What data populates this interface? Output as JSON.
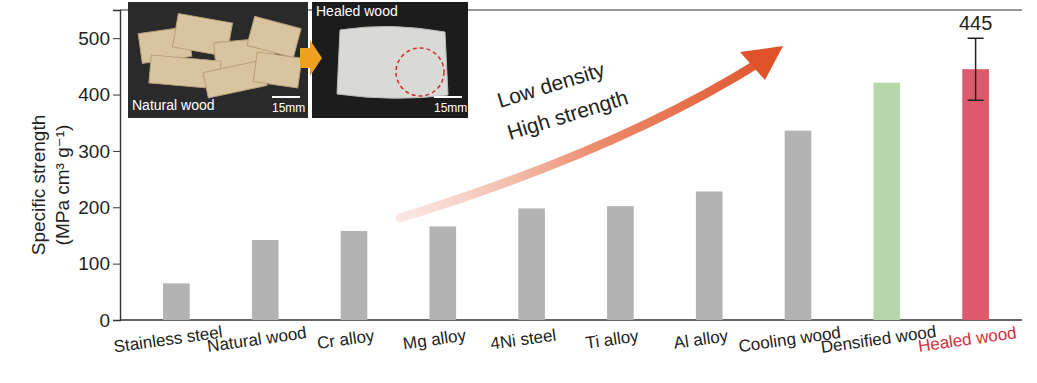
{
  "chart_data": {
    "type": "bar",
    "y_label": [
      "Specific strength",
      "(MPa cm³ g⁻¹)"
    ],
    "categories": [
      "Stainless steel",
      "Natural wood",
      "Cr alloy",
      "Mg alloy",
      "4Ni steel",
      "Ti  alloy",
      "Al alloy",
      "Cooling wood",
      "Densified wood",
      "Healed wood"
    ],
    "values": [
      65,
      142,
      158,
      166,
      198,
      202,
      228,
      336,
      421,
      445
    ],
    "errors": [
      null,
      null,
      null,
      null,
      null,
      null,
      null,
      null,
      null,
      55
    ],
    "value_labels": [
      null,
      null,
      null,
      null,
      null,
      null,
      null,
      null,
      null,
      "445"
    ],
    "data_labels": true,
    "colors": [
      "#b3b3b3",
      "#b3b3b3",
      "#b3b3b3",
      "#b3b3b3",
      "#b3b3b3",
      "#b3b3b3",
      "#b3b3b3",
      "#b3b3b3",
      "#b6d7a8",
      "#dc5a6c"
    ],
    "ylim": [
      0,
      550
    ],
    "yticks": [
      0,
      100,
      200,
      300,
      400,
      500
    ],
    "grid": false,
    "annotations": [
      {
        "text": "Low density"
      },
      {
        "text": "High strength"
      },
      {
        "text": "Natural wood"
      },
      {
        "text": "15mm"
      },
      {
        "text": "Healed wood"
      },
      {
        "text": "15mm"
      }
    ]
  }
}
